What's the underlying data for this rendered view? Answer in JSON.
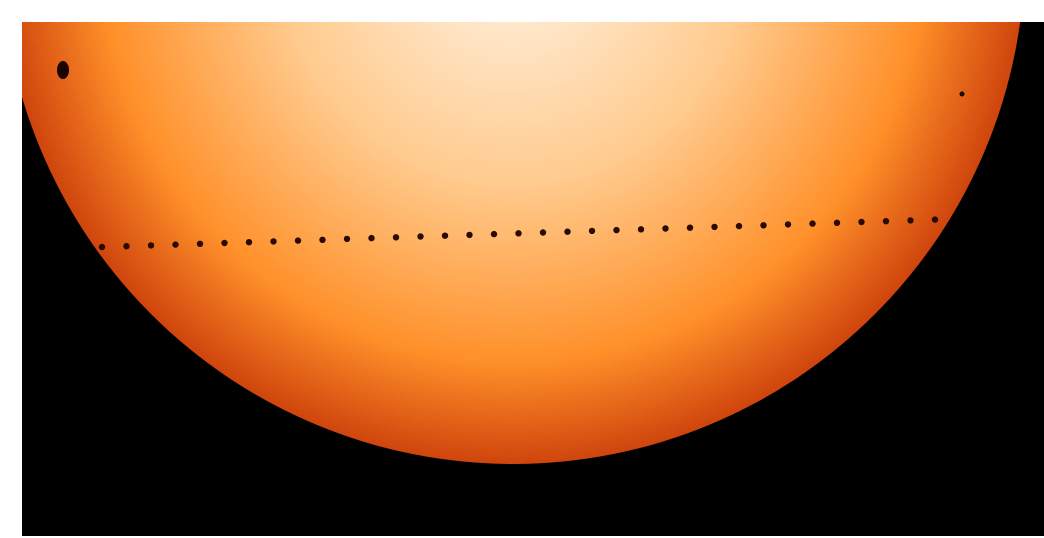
{
  "image": {
    "subject": "solar-transit-composite",
    "colors": {
      "page_background": "#ffffff",
      "space_background": "#000000",
      "sun_center": "#fff4e6",
      "sun_mid": "#ffc98a",
      "sun_outer": "#ff8a1e",
      "sun_limb": "#cc3a00",
      "transit_dots": "#2a0a00",
      "sunspot": "#1a0500"
    },
    "transit_track": {
      "dot_count": 37
    },
    "sunspots": [
      {
        "name": "sunspot-large-left",
        "size": "large"
      },
      {
        "name": "sunspot-small-right",
        "size": "small"
      }
    ]
  }
}
